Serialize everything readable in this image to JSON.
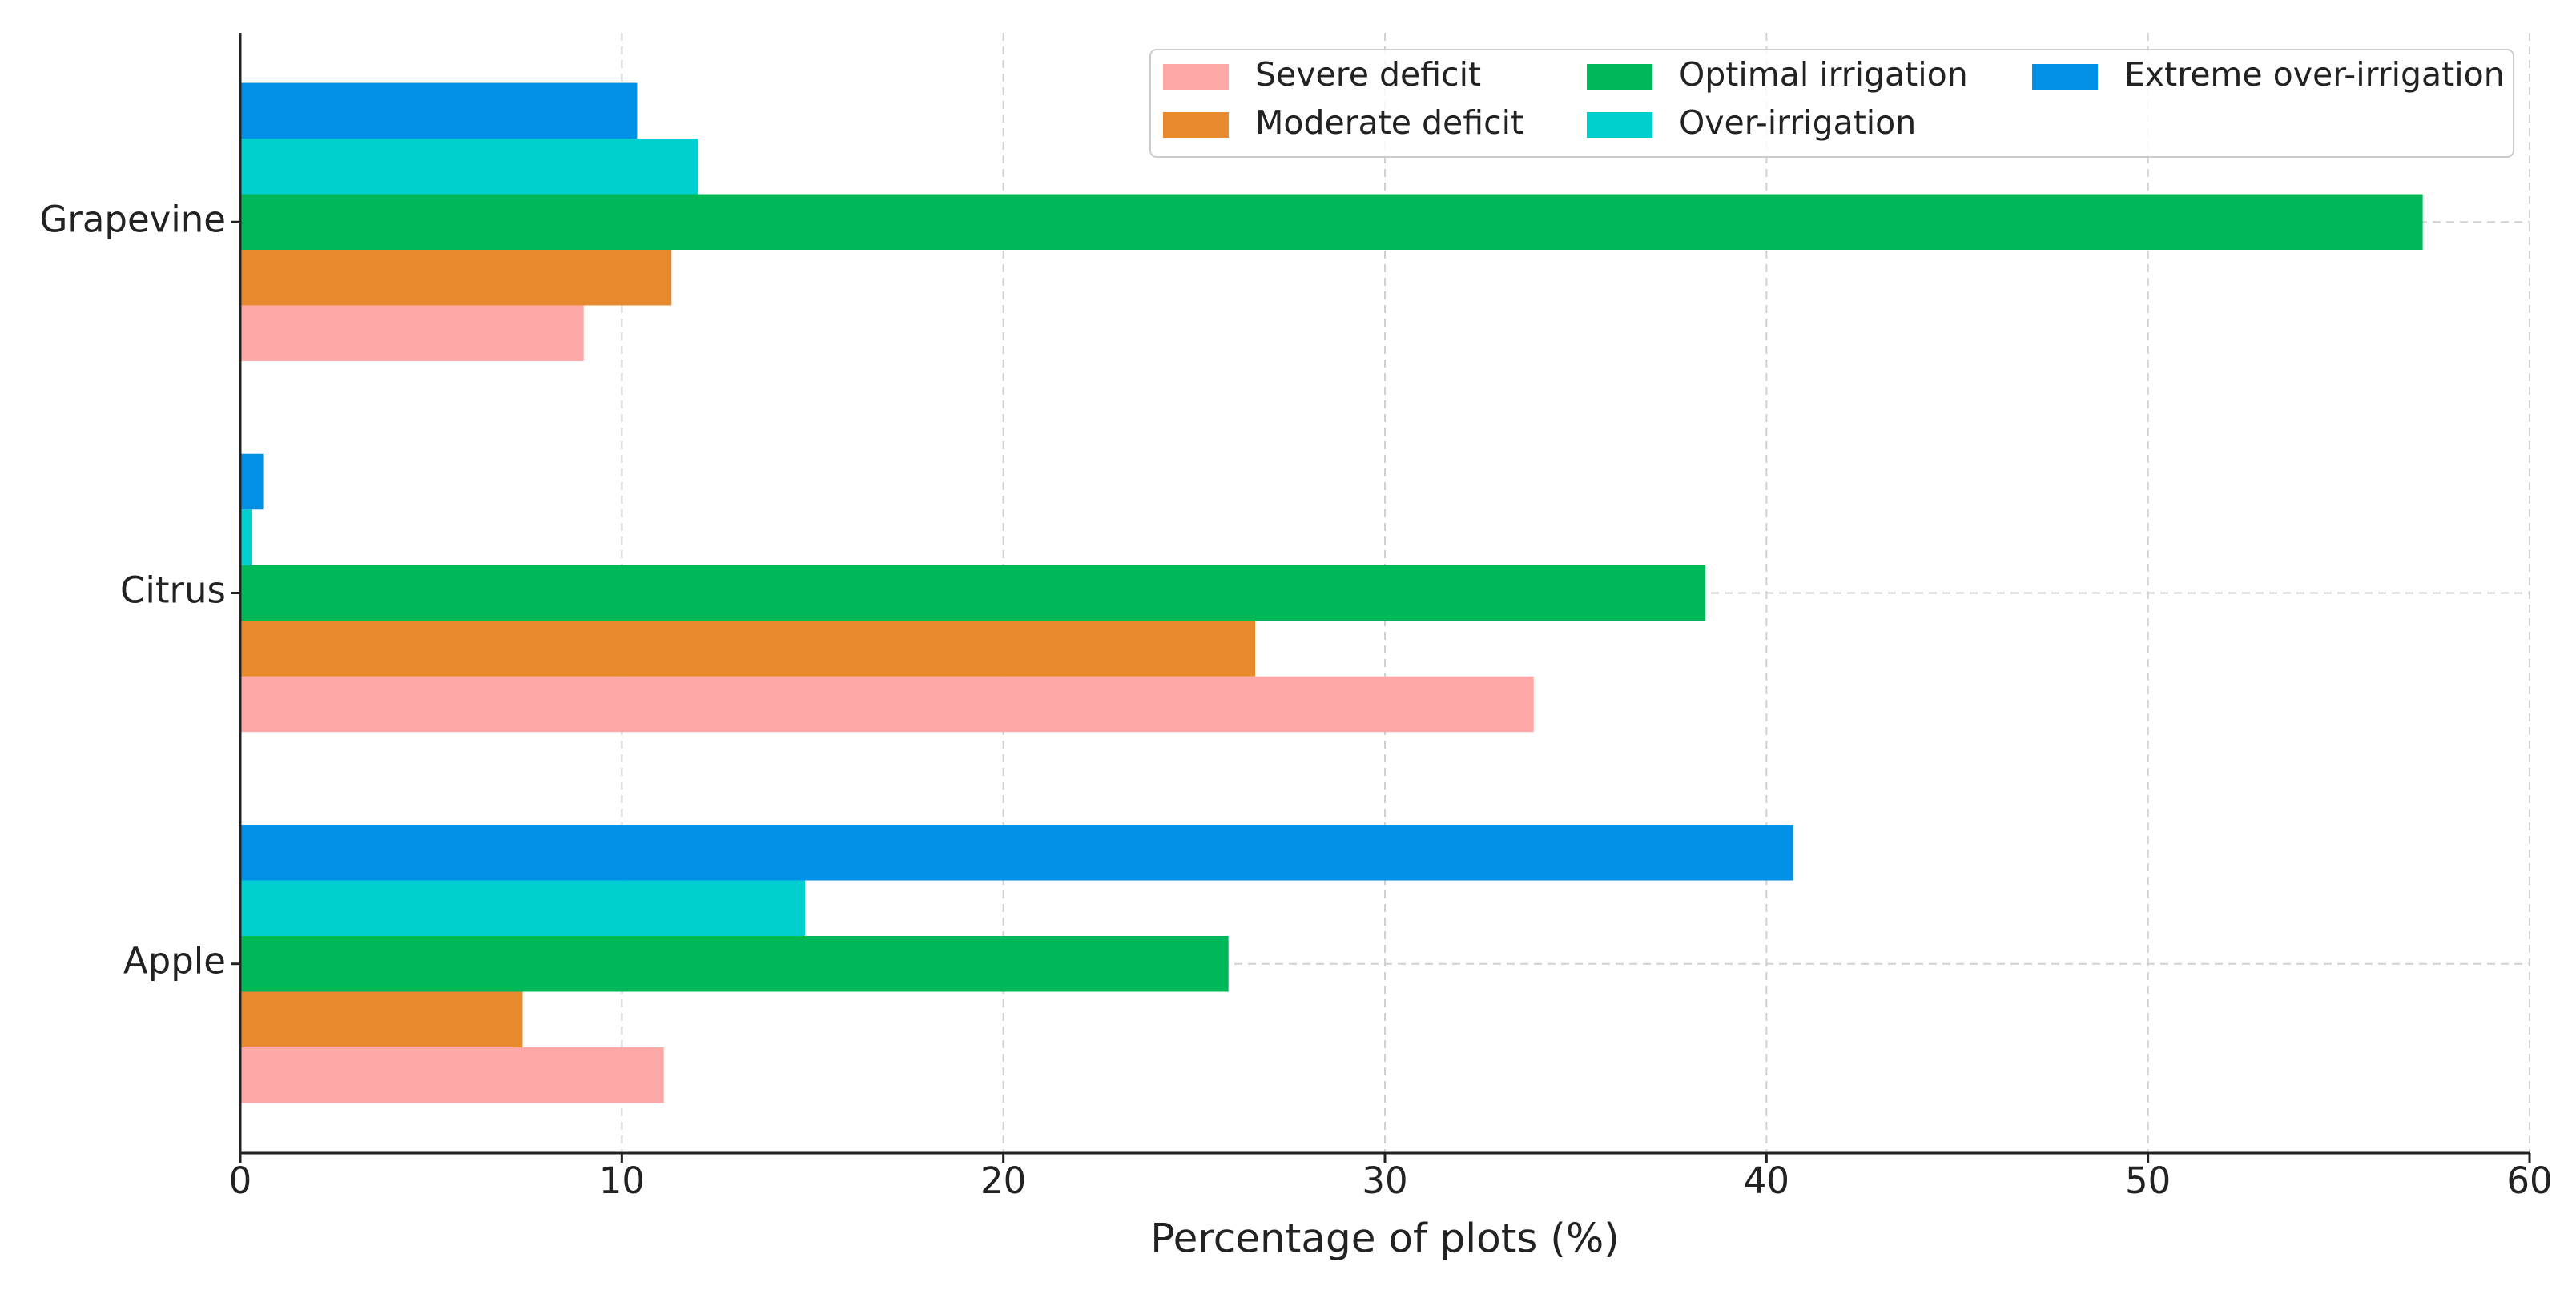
{
  "chart_data": {
    "type": "barh",
    "xlabel": "Percentage of plots (%)",
    "categories": [
      "Apple",
      "Citrus",
      "Grapevine"
    ],
    "series": [
      {
        "name": "Severe deficit",
        "color": "#ffa8a8",
        "values": [
          11.1,
          33.9,
          9.0
        ]
      },
      {
        "name": "Moderate deficit",
        "color": "#e8892e",
        "values": [
          7.4,
          26.6,
          11.3
        ]
      },
      {
        "name": "Optimal irrigation",
        "color": "#00b857",
        "values": [
          25.9,
          38.4,
          57.2
        ]
      },
      {
        "name": "Over-irrigation",
        "color": "#00cfcf",
        "values": [
          14.8,
          0.3,
          12.0
        ]
      },
      {
        "name": "Extreme over-irrigation",
        "color": "#0090e6",
        "values": [
          40.7,
          0.6,
          10.4
        ]
      }
    ],
    "xlim": [
      0,
      60
    ],
    "xticks": [
      0,
      10,
      20,
      30,
      40,
      50,
      60
    ],
    "grid": true,
    "legend": "upper right"
  }
}
